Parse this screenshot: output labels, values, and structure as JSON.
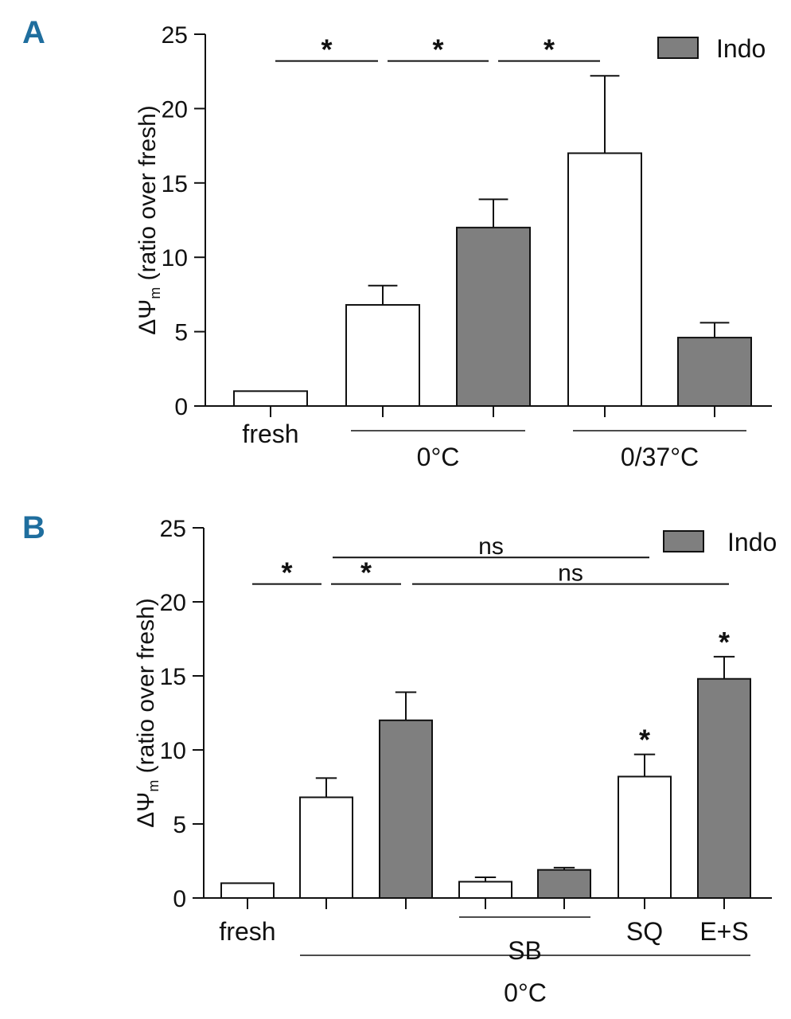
{
  "chart_data": [
    {
      "panel": "A",
      "type": "bar",
      "ylabel_main": "ΔΨ",
      "ylabel_sub": "m",
      "ylabel_rest": " (ratio over fresh)",
      "ylim": [
        0,
        25
      ],
      "yticks": [
        0,
        5,
        10,
        15,
        20,
        25
      ],
      "legend": {
        "label": "Indo",
        "color": "#7f7f7f",
        "placement": "top-right"
      },
      "bars": [
        {
          "value": 1.0,
          "error": 0.0,
          "filled": false
        },
        {
          "value": 6.8,
          "error": 1.3,
          "filled": false
        },
        {
          "value": 12.0,
          "error": 1.9,
          "filled": true
        },
        {
          "value": 17.0,
          "error": 5.2,
          "filled": false
        },
        {
          "value": 4.6,
          "error": 1.0,
          "filled": true
        }
      ],
      "bar_labels": [
        {
          "bar": 0,
          "text": "fresh"
        }
      ],
      "groups": [
        {
          "from": 1,
          "to": 2,
          "label": "0°C"
        },
        {
          "from": 3,
          "to": 4,
          "label": "0/37°C"
        }
      ],
      "brackets": [
        {
          "from": 0,
          "to": 1,
          "y": 23.2,
          "label": "*"
        },
        {
          "from": 1,
          "to": 2,
          "y": 23.2,
          "label": "*"
        },
        {
          "from": 2,
          "to": 3,
          "y": 23.2,
          "label": "*"
        }
      ],
      "bar_stars": []
    },
    {
      "panel": "B",
      "type": "bar",
      "ylabel_main": "ΔΨ",
      "ylabel_sub": "m",
      "ylabel_rest": " (ratio over fresh)",
      "ylim": [
        0,
        25
      ],
      "yticks": [
        0,
        5,
        10,
        15,
        20,
        25
      ],
      "legend": {
        "label": "Indo",
        "color": "#7f7f7f",
        "placement": "top-right"
      },
      "bars": [
        {
          "value": 1.0,
          "error": 0.0,
          "filled": false
        },
        {
          "value": 6.8,
          "error": 1.3,
          "filled": false
        },
        {
          "value": 12.0,
          "error": 1.9,
          "filled": true
        },
        {
          "value": 1.1,
          "error": 0.3,
          "filled": false
        },
        {
          "value": 1.9,
          "error": 0.15,
          "filled": true
        },
        {
          "value": 8.2,
          "error": 1.5,
          "filled": false
        },
        {
          "value": 14.8,
          "error": 1.5,
          "filled": true
        }
      ],
      "bar_labels": [
        {
          "bar": 0,
          "text": "fresh"
        },
        {
          "bar": 5,
          "text": "SQ"
        },
        {
          "bar": 6,
          "text": "E+S"
        }
      ],
      "groups": [
        {
          "from": 3,
          "to": 4,
          "label": "SB"
        },
        {
          "from": 1,
          "to": 6,
          "label": "0°C"
        }
      ],
      "brackets": [
        {
          "from": 0,
          "to": 1,
          "y": 21.2,
          "label": "*"
        },
        {
          "from": 1,
          "to": 2,
          "y": 21.2,
          "label": "*"
        },
        {
          "from": 1,
          "to": 5,
          "y": 23.0,
          "label": "ns"
        },
        {
          "from": 2,
          "to": 6,
          "y": 21.2,
          "label": "ns"
        }
      ],
      "bar_stars": [
        {
          "bar": 5,
          "label": "*"
        },
        {
          "bar": 6,
          "label": "*"
        }
      ]
    }
  ]
}
